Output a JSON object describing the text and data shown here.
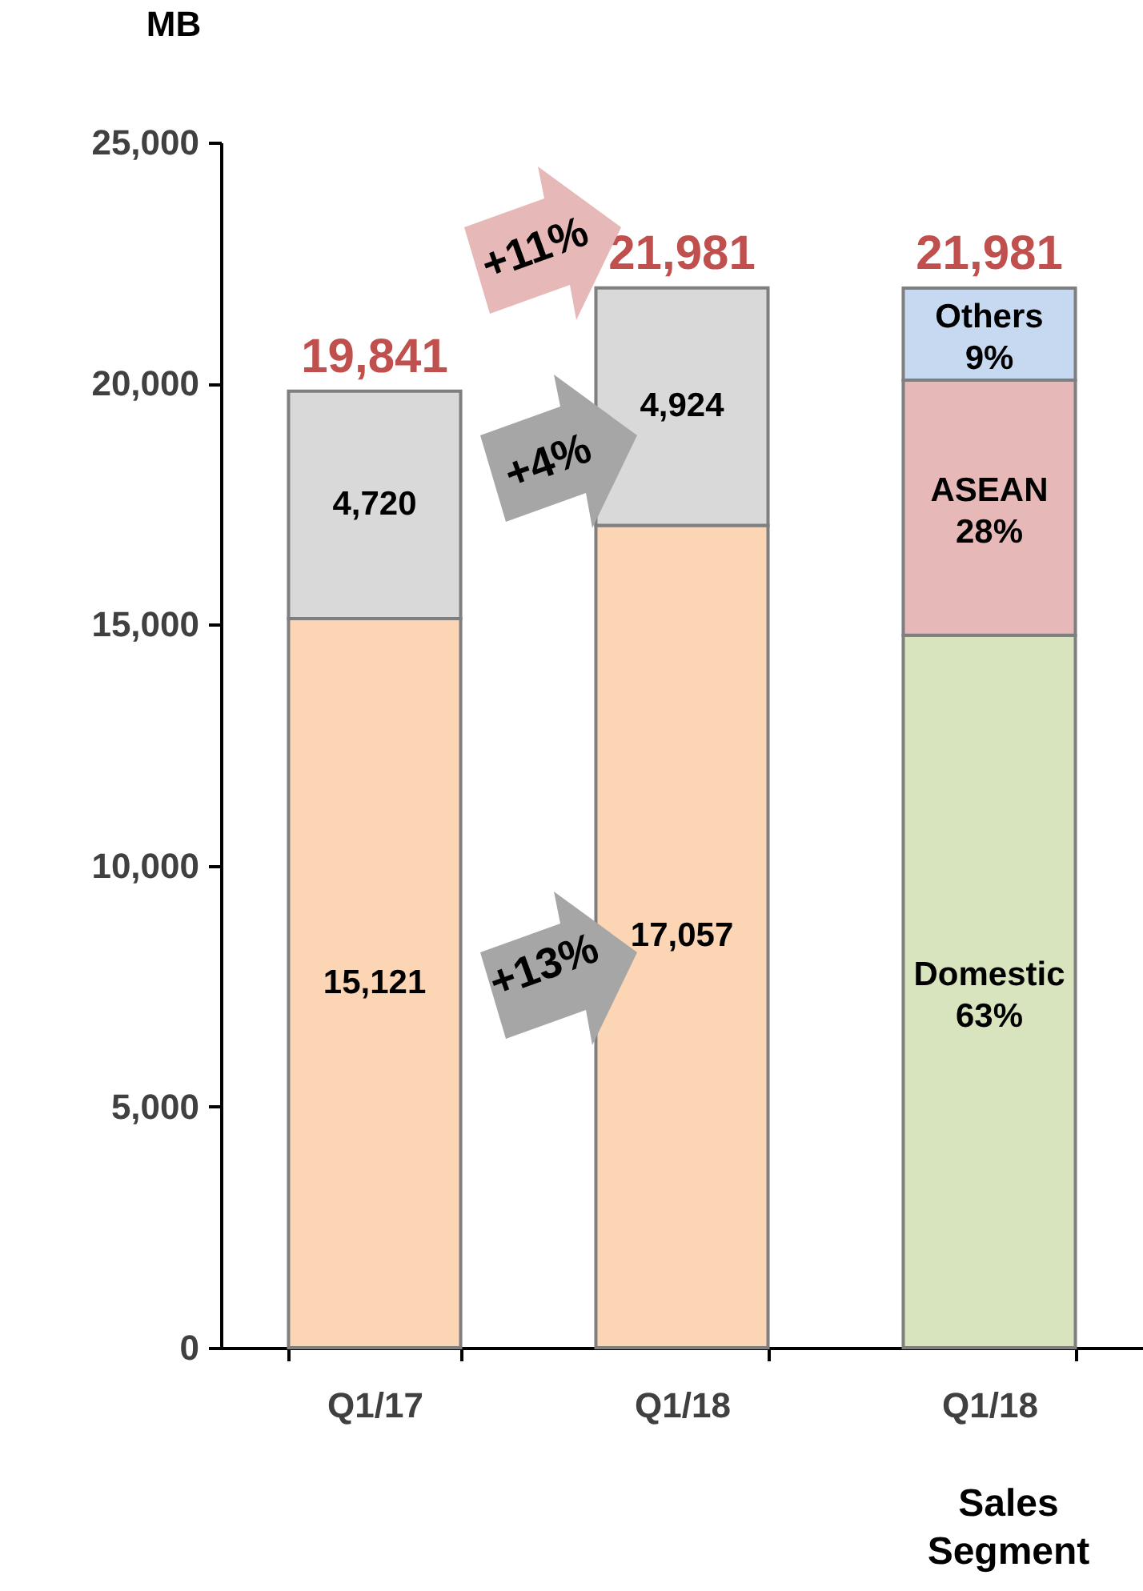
{
  "chart_data": {
    "type": "bar",
    "stacked": true,
    "ylabel": "MB",
    "categories": [
      "Q1/17",
      "Q1/18",
      "Q1/18"
    ],
    "ylim": [
      0,
      25000
    ],
    "yticks": [
      0,
      {
        "value": 5000,
        "label": "5,000"
      },
      {
        "value": 10000,
        "label": "10,000"
      },
      {
        "value": 15000,
        "label": "15,000"
      },
      {
        "value": 20000,
        "label": "20,000"
      },
      {
        "value": 25000,
        "label": "25,000"
      }
    ],
    "series": [
      {
        "color": "#fcd5b5",
        "values": [
          15121,
          17057,
          null
        ],
        "value_labels": [
          "15,121",
          "17,057",
          null
        ]
      },
      {
        "color": "#d9d9d9",
        "values": [
          4720,
          4924,
          null
        ],
        "value_labels": [
          "4,720",
          "4,924",
          null
        ]
      },
      {
        "name": "Domestic",
        "color": "#d7e4bd",
        "values": [
          null,
          null,
          14780
        ]
      },
      {
        "name": "ASEAN",
        "color": "#e6b9b8",
        "values": [
          null,
          null,
          5290
        ]
      },
      {
        "name": "Others",
        "color": "#c6d9f1",
        "values": [
          null,
          null,
          1910
        ]
      }
    ],
    "totals": [
      "19,841",
      "21,981",
      "21,981"
    ],
    "annotations": [
      "+11%",
      "+4%",
      "+13%",
      "63%",
      "28%",
      "9%",
      "Sales Segment"
    ]
  }
}
